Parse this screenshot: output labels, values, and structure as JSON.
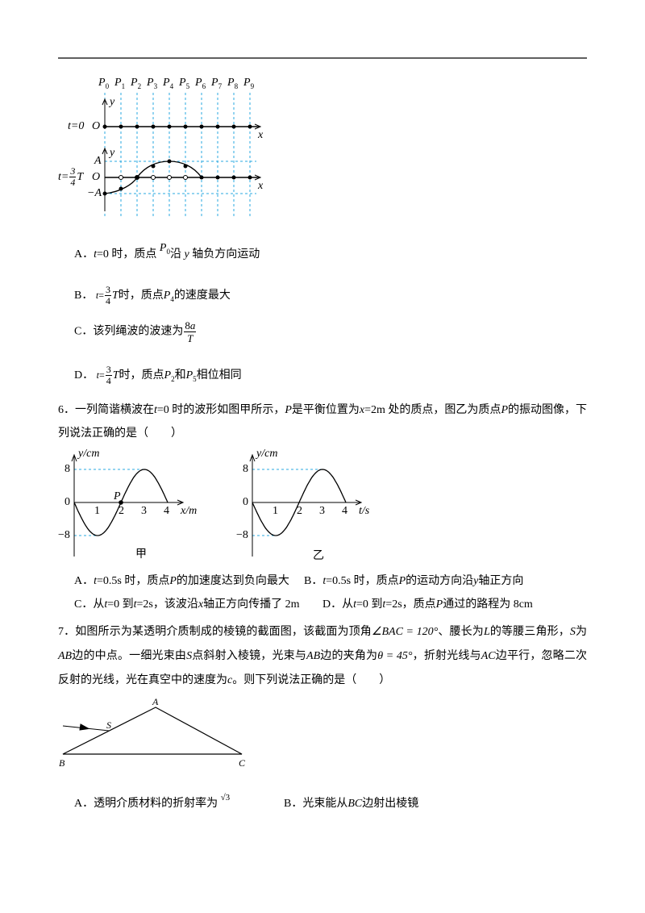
{
  "question5": {
    "figure": {
      "p": "P",
      "p_subs": [
        "0",
        "1",
        "2",
        "3",
        "4",
        "5",
        "6",
        "7",
        "8",
        "9"
      ],
      "y": "y",
      "x": "x",
      "row1_label": "t=0",
      "origin": "O",
      "amp_pos": "A",
      "amp_neg": "−A",
      "row2_t": "t=",
      "frac_num": "3",
      "frac_den": "4",
      "period": "T"
    },
    "options": [
      [
        "A．",
        "t",
        "=0 时，质点",
        "P",
        "0",
        "沿",
        "y",
        "轴负方向运动"
      ],
      [
        "B．",
        "t",
        "=",
        "3",
        "4",
        "T",
        "时，质点",
        "P",
        "4",
        "的速度最大"
      ],
      [
        "C．该列绳波的波速为",
        "8",
        "a",
        "T"
      ],
      [
        "D．",
        "t",
        "=",
        "3",
        "4",
        "T",
        "时，质点",
        "P",
        "2",
        "和",
        "P",
        "5",
        "相位相同"
      ]
    ]
  },
  "question6": {
    "stem": [
      "6．一列简谐横波在",
      "t",
      "=0 时的波形如图甲所示，",
      "P",
      "是平衡位置为",
      "x",
      "=2m 处的质点，图乙为质点",
      "P",
      "的振动图像，下列说法正确的是（　　）"
    ],
    "graph_a": {
      "y_label": "y/cm",
      "y_ticks": [
        "8",
        "0",
        "−8"
      ],
      "x_ticks": [
        "1",
        "2",
        "3",
        "4"
      ],
      "x_label": "x/m",
      "point": "P",
      "caption": "甲"
    },
    "graph_b": {
      "y_label": "y/cm",
      "y_ticks": [
        "8",
        "0",
        "−8"
      ],
      "x_ticks": [
        "1",
        "2",
        "3",
        "4"
      ],
      "x_label": "t/s",
      "caption": "乙"
    },
    "options": [
      [
        "A．",
        "t",
        "=0.5s 时，质点",
        "P",
        "的加速度达到负向最大"
      ],
      [
        "B．",
        "t",
        "=0.5s 时，质点",
        "P",
        "的运动方向沿",
        "y",
        "轴正方向"
      ],
      [
        "C．从",
        "t",
        "=0 到",
        "t",
        "=2s，该波沿",
        "x",
        "轴正方向传播了 2m"
      ],
      [
        "D．从",
        "t",
        "=0 到",
        "t",
        "=2s，质点",
        "P",
        "通过的路程为 8cm"
      ]
    ]
  },
  "question7": {
    "stem": [
      "7．如图所示为某透明介质制成的棱镜的截面图，该截面为顶角",
      "∠BAC = 120°",
      "、腰长为",
      "L",
      "的等腰三角形，",
      "S",
      "为",
      "AB",
      "边的中点。一细光束由",
      "S",
      "点斜射入棱镜，光束与",
      "AB",
      "边的夹角为",
      "θ = 45°",
      "，折射光线与",
      "AC",
      "边平行，忽略二次反射的光线，光在真空中的速度为",
      "c",
      "。则下列说法正确的是（　　）"
    ],
    "figure": {
      "a": "A",
      "b": "B",
      "c": "C",
      "s": "S"
    },
    "options": [
      [
        "A．透明介质材料的折射率为",
        "√3"
      ],
      [
        "B．光束能从",
        "BC",
        "边射出棱镜"
      ]
    ]
  }
}
